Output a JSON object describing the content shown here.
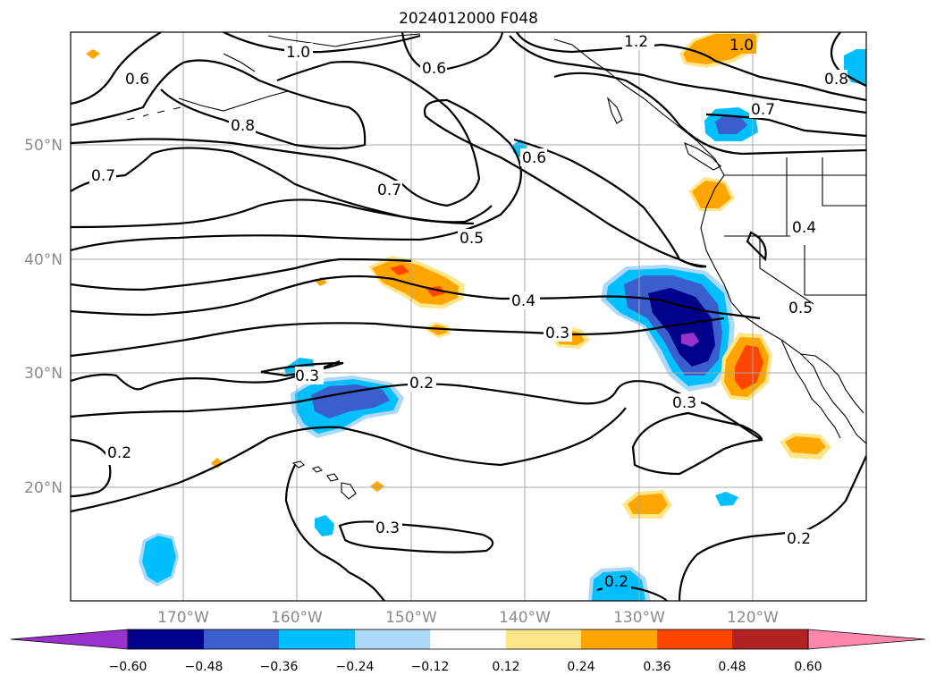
{
  "title": "2024012000 F048",
  "lat_ticks": [
    "50°N",
    "40°N",
    "30°N",
    "20°N"
  ],
  "lon_ticks": [
    "170°W",
    "160°W",
    "150°W",
    "140°W",
    "130°W",
    "120°W"
  ],
  "contour_labels": [
    "1.2",
    "1.0",
    "1.0",
    "0.6",
    "0.6",
    "0.8",
    "0.8",
    "0.7",
    "0.7",
    "0.7",
    "0.6",
    "0.5",
    "0.4",
    "0.3",
    "0.3",
    "0.2",
    "0.2",
    "0.3",
    "0.3",
    "0.2",
    "0.2",
    "0.4",
    "0.5",
    "0.3"
  ],
  "colorbar": {
    "tick_labels": [
      "−0.60",
      "−0.48",
      "−0.36",
      "−0.24",
      "−0.12",
      "0.12",
      "0.24",
      "0.36",
      "0.48",
      "0.60"
    ],
    "colors": [
      "#9932cc",
      "#00008b",
      "#3a5fcd",
      "#00bfff",
      "#add8f7",
      "#ffffff",
      "#fde68a",
      "#ffa500",
      "#ff4500",
      "#b22222",
      "#ff88aa"
    ]
  }
}
